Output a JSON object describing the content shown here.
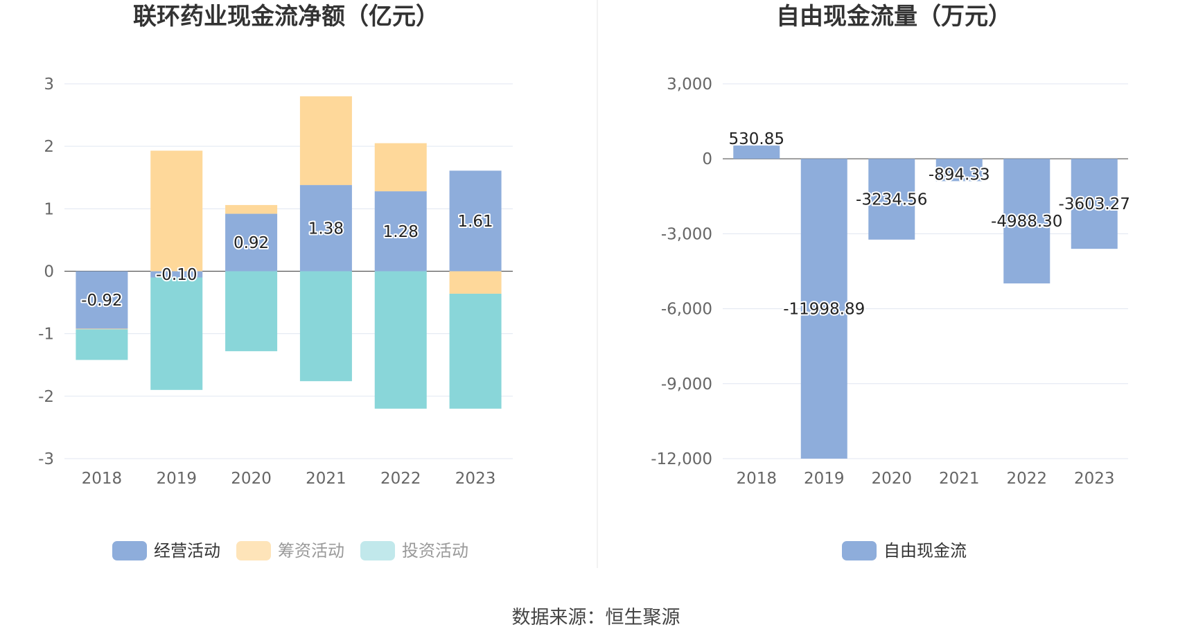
{
  "chart_data": [
    {
      "type": "bar",
      "stacked": true,
      "title": "联环药业现金流净额（亿元）",
      "categories": [
        "2018",
        "2019",
        "2020",
        "2021",
        "2022",
        "2023"
      ],
      "series": [
        {
          "name": "经营活动",
          "color": "#8eaddb",
          "values": [
            -0.92,
            -0.1,
            0.92,
            1.38,
            1.28,
            1.61
          ],
          "labels": [
            "-0.92",
            "-0.10",
            "0.92",
            "1.38",
            "1.28",
            "1.61"
          ]
        },
        {
          "name": "筹资活动",
          "color": "#fed89a",
          "values": [
            -0.01,
            1.93,
            0.14,
            1.42,
            0.77,
            -0.36
          ]
        },
        {
          "name": "投资活动",
          "color": "#89d6d9",
          "values": [
            -0.49,
            -1.8,
            -1.28,
            -1.76,
            -2.2,
            -1.84
          ]
        }
      ],
      "yticks": [
        "3",
        "2",
        "1",
        "0",
        "-1",
        "-2",
        "-3"
      ],
      "ylim": [
        -3,
        3
      ],
      "legend_position": "bottom",
      "grid": true
    },
    {
      "type": "bar",
      "title": "自由现金流量（万元）",
      "categories": [
        "2018",
        "2019",
        "2020",
        "2021",
        "2022",
        "2023"
      ],
      "series": [
        {
          "name": "自由现金流",
          "color": "#8eaddb",
          "values": [
            530.85,
            -11998.89,
            -3234.56,
            -894.33,
            -4988.3,
            -3603.27
          ],
          "labels": [
            "530.85",
            "-11998.89",
            "-3234.56",
            "-894.33",
            "-4988.30",
            "-3603.27"
          ]
        }
      ],
      "yticks": [
        "3,000",
        "0",
        "-3,000",
        "-6,000",
        "-9,000",
        "-12,000"
      ],
      "ylim": [
        -12000,
        3000
      ],
      "legend_position": "bottom",
      "grid": true
    }
  ],
  "source": "数据来源：恒生聚源"
}
